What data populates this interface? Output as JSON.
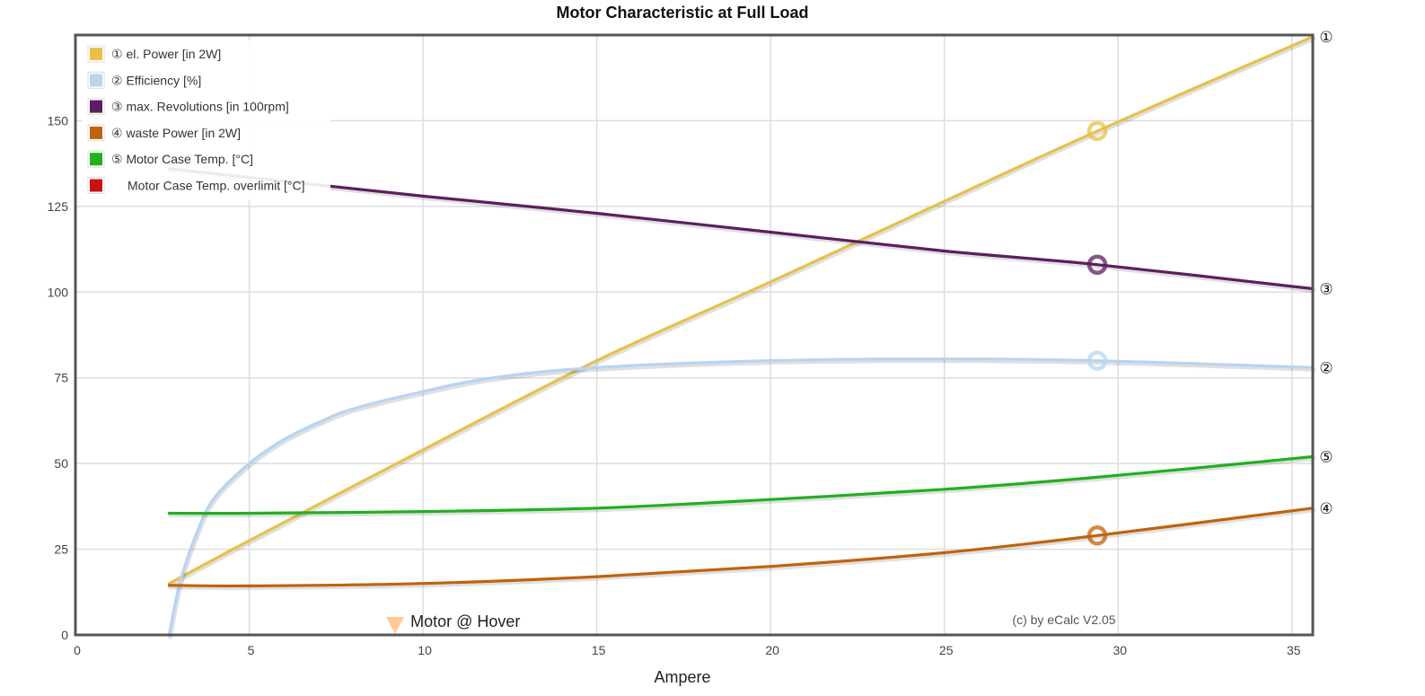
{
  "chart_data": {
    "type": "line",
    "title": "Motor Characteristic at Full Load",
    "xlabel": "Ampere",
    "ylabel": "",
    "xlim": [
      0,
      35.6
    ],
    "ylim": [
      0,
      175
    ],
    "xticks": [
      0,
      5,
      10,
      15,
      20,
      25,
      30,
      35
    ],
    "yticks": [
      0,
      25,
      50,
      75,
      100,
      125,
      150
    ],
    "grid": true,
    "legend_position": "top-left",
    "legend": [
      {
        "label": "① el. Power [in 2W]",
        "color": "#E8C04A"
      },
      {
        "label": "② Efficiency [%]",
        "color": "#B5D5F2"
      },
      {
        "label": "③ max. Revolutions [in 100rpm]",
        "color": "#5E1E5E"
      },
      {
        "label": "④ waste Power [in 2W]",
        "color": "#C0630E"
      },
      {
        "label": "⑤ Motor Case Temp. [°C]",
        "color": "#20B020"
      },
      {
        "label": "Motor Case Temp. overlimit [°C]",
        "color": "#CC1111"
      }
    ],
    "series": [
      {
        "marker": "①",
        "color": "#E8C04A",
        "x": [
          2.7,
          5,
          10,
          15,
          20,
          25,
          29.4,
          35.6
        ],
        "y": [
          15,
          27.5,
          54,
          80,
          103,
          126.5,
          147,
          174.5
        ]
      },
      {
        "marker": "②",
        "color": "#B5D5F2",
        "x": [
          2.7,
          3,
          3.5,
          4,
          5,
          6,
          7,
          8,
          10,
          12,
          15,
          20,
          25,
          29.4,
          35.6
        ],
        "y": [
          0,
          15,
          30,
          40,
          50,
          57,
          62,
          66,
          71,
          75,
          78,
          80,
          80.5,
          80,
          78
        ]
      },
      {
        "marker": "③",
        "color": "#5E1E5E",
        "x": [
          2.7,
          10,
          15,
          20,
          25,
          29.4,
          35.6
        ],
        "y": [
          136,
          128,
          123,
          117.5,
          112,
          108,
          101
        ]
      },
      {
        "marker": "④",
        "color": "#C0630E",
        "x": [
          2.7,
          5,
          10,
          15,
          20,
          25,
          29.4,
          35.6
        ],
        "y": [
          14.5,
          14.3,
          15,
          17,
          20,
          24,
          29,
          37
        ]
      },
      {
        "marker": "⑤",
        "color": "#20B020",
        "x": [
          2.7,
          5,
          10,
          15,
          20,
          25,
          29.4,
          35.6
        ],
        "y": [
          35.5,
          35.5,
          36,
          37,
          39.5,
          42.5,
          46,
          52
        ]
      }
    ],
    "operating_point": {
      "x": 29.4,
      "values": [
        147,
        80,
        108,
        29
      ]
    },
    "annotation": {
      "label": "Motor @ Hover",
      "x": 9.2,
      "color": "#FFC999"
    },
    "credit": "(c) by eCalc V2.05"
  }
}
